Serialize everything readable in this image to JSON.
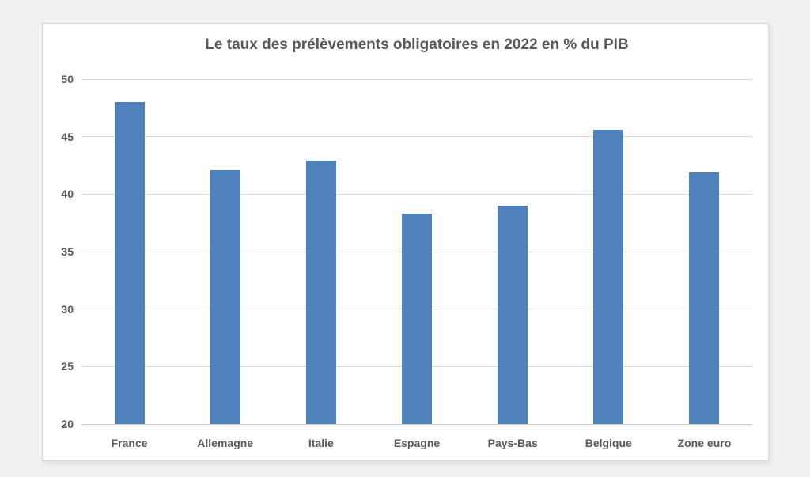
{
  "chart_data": {
    "type": "bar",
    "title": "Le taux des prélèvements obligatoires en 2022 en % du PIB",
    "categories": [
      "France",
      "Allemagne",
      "Italie",
      "Espagne",
      "Pays-Bas",
      "Belgique",
      "Zone euro"
    ],
    "values": [
      48.0,
      42.1,
      42.9,
      38.3,
      39.0,
      45.6,
      41.9
    ],
    "xlabel": "",
    "ylabel": "",
    "ylim": [
      20,
      50
    ],
    "ytick_step": 5,
    "ytick_labels": [
      "20",
      "25",
      "30",
      "35",
      "40",
      "45",
      "50"
    ],
    "grid": true,
    "legend_position": "none",
    "bar_color": "#4f81bd",
    "gridline_color": "#d9d9d9",
    "baseline_color": "#c9c9c9",
    "text_color": "#595959",
    "panel_background": "#ffffff",
    "page_background": "#f0f0f0"
  }
}
